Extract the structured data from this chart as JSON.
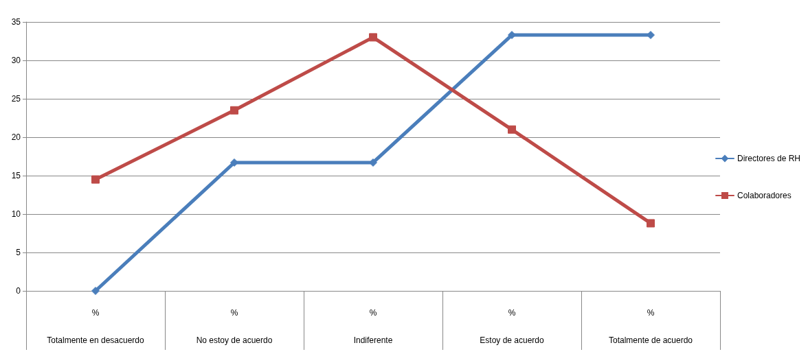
{
  "chart_data": {
    "type": "line",
    "categories": [
      "%\nTotalmente en desacuerdo",
      "%\nNo estoy de acuerdo",
      "%\nIndiferente",
      "%\nEstoy de acuerdo",
      "%\nTotalmente de acuerdo"
    ],
    "series": [
      {
        "name": "Directores de RH",
        "color": "#4a7ebb",
        "marker": "diamond",
        "values": [
          0,
          16.7,
          16.7,
          33.3,
          33.3
        ]
      },
      {
        "name": "Colaboradores",
        "color": "#be4b48",
        "marker": "square",
        "values": [
          14.5,
          23.5,
          33,
          21,
          8.8
        ]
      }
    ],
    "ylim": [
      0,
      35
    ],
    "yticks": [
      0,
      5,
      10,
      15,
      20,
      25,
      30,
      35
    ],
    "grid": "y",
    "legend": "right",
    "line_style": "solid"
  }
}
